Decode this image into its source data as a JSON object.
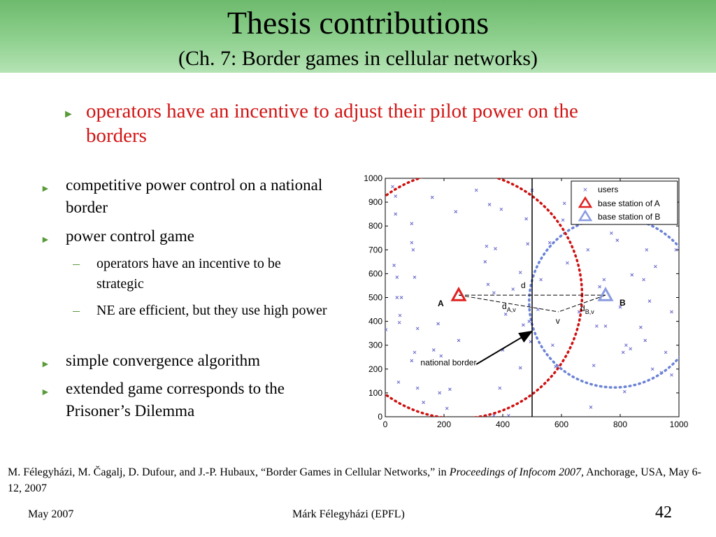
{
  "slide": {
    "title": "Thesis contributions",
    "subtitle": "(Ch. 7: Border games in cellular networks)",
    "lead": "operators have an incentive to adjust their pilot power on the borders",
    "bullets": [
      "competitive power control on a national border",
      "power control game",
      "simple convergence algorithm",
      "extended game corresponds to the Prisoner’s Dilemma"
    ],
    "subbullets": [
      "operators have an incentive to be strategic",
      "NE are efficient, but they use high power"
    ],
    "bullet_glyph": "►",
    "dash_glyph": "–",
    "reference": {
      "part1": "M. Félegyházi, M. Čagalj, D. Dufour, and J.-P. Hubaux, “Border Games in Cellular Networks,” in ",
      "venue": "Proceedings of Infocom 2007,",
      "part2": " Anchorage, USA, May 6-12, 2007"
    },
    "footer": {
      "date": "May 2007",
      "author": "Márk Félegyházi (EPFL)",
      "page": "42"
    },
    "colors": {
      "lead_text": "#d21414",
      "bullet": "#5a9a3a",
      "header_green": "#8fd08f"
    }
  },
  "chart_data": {
    "type": "scatter",
    "xlim": [
      0,
      1000
    ],
    "ylim": [
      0,
      1000
    ],
    "xticks": [
      "0",
      "200",
      "400",
      "600",
      "800",
      "1000"
    ],
    "yticks": [
      "0",
      "100",
      "200",
      "300",
      "400",
      "500",
      "600",
      "700",
      "800",
      "900",
      "1000"
    ],
    "legend": [
      "users",
      "base station of A",
      "base station of B"
    ],
    "legend_position": "top-right",
    "colors": {
      "users": "#6666cc",
      "station_a": "#e02020",
      "station_b": "#8a9be0",
      "border_a": "#d01010",
      "border_b": "#6b82d6"
    },
    "users": [
      [
        2,
        365
      ],
      [
        25,
        965
      ],
      [
        35,
        925
      ],
      [
        30,
        635
      ],
      [
        40,
        585
      ],
      [
        40,
        500
      ],
      [
        55,
        500
      ],
      [
        50,
        425
      ],
      [
        48,
        395
      ],
      [
        45,
        145
      ],
      [
        35,
        850
      ],
      [
        90,
        810
      ],
      [
        90,
        730
      ],
      [
        95,
        700
      ],
      [
        100,
        585
      ],
      [
        110,
        370
      ],
      [
        100,
        270
      ],
      [
        90,
        235
      ],
      [
        110,
        120
      ],
      [
        130,
        60
      ],
      [
        160,
        920
      ],
      [
        165,
        280
      ],
      [
        180,
        390
      ],
      [
        190,
        255
      ],
      [
        185,
        100
      ],
      [
        210,
        35
      ],
      [
        220,
        115
      ],
      [
        240,
        860
      ],
      [
        250,
        320
      ],
      [
        310,
        950
      ],
      [
        340,
        650
      ],
      [
        345,
        715
      ],
      [
        355,
        890
      ],
      [
        350,
        555
      ],
      [
        370,
        520
      ],
      [
        375,
        705
      ],
      [
        395,
        870
      ],
      [
        390,
        120
      ],
      [
        400,
        280
      ],
      [
        370,
        5
      ],
      [
        410,
        430
      ],
      [
        420,
        5
      ],
      [
        435,
        535
      ],
      [
        460,
        205
      ],
      [
        460,
        605
      ],
      [
        470,
        385
      ],
      [
        480,
        830
      ],
      [
        485,
        725
      ],
      [
        490,
        400
      ],
      [
        495,
        315
      ],
      [
        500,
        950
      ],
      [
        520,
        450
      ],
      [
        530,
        575
      ],
      [
        560,
        730
      ],
      [
        570,
        300
      ],
      [
        580,
        210
      ],
      [
        605,
        825
      ],
      [
        610,
        895
      ],
      [
        620,
        645
      ],
      [
        640,
        815
      ],
      [
        660,
        440
      ],
      [
        690,
        700
      ],
      [
        710,
        215
      ],
      [
        720,
        380
      ],
      [
        730,
        545
      ],
      [
        745,
        575
      ],
      [
        770,
        770
      ],
      [
        790,
        740
      ],
      [
        800,
        460
      ],
      [
        810,
        270
      ],
      [
        815,
        105
      ],
      [
        820,
        300
      ],
      [
        835,
        285
      ],
      [
        840,
        595
      ],
      [
        870,
        375
      ],
      [
        880,
        575
      ],
      [
        885,
        320
      ],
      [
        890,
        700
      ],
      [
        900,
        485
      ],
      [
        910,
        200
      ],
      [
        920,
        630
      ],
      [
        940,
        185
      ],
      [
        955,
        270
      ],
      [
        960,
        925
      ],
      [
        975,
        175
      ],
      [
        975,
        440
      ],
      [
        980,
        830
      ],
      [
        990,
        700
      ],
      [
        700,
        40
      ],
      [
        750,
        380
      ]
    ],
    "station_a": {
      "label": "A",
      "x": 250,
      "y": 510
    },
    "station_b": {
      "label": "B",
      "x": 750,
      "y": 510
    },
    "point_v": {
      "label": "v",
      "x": 590,
      "y": 440
    },
    "national_border_x": 500,
    "border_a_center": [
      250,
      510
    ],
    "border_a_radius": 420,
    "border_b_center": [
      780,
      480
    ],
    "border_b_radius": 290,
    "labels": {
      "d": "d",
      "d_av_main": "d",
      "d_av_sub": "A,v",
      "d_bv_main": "d",
      "d_bv_sub": "B,v",
      "national_border": "national border"
    }
  }
}
